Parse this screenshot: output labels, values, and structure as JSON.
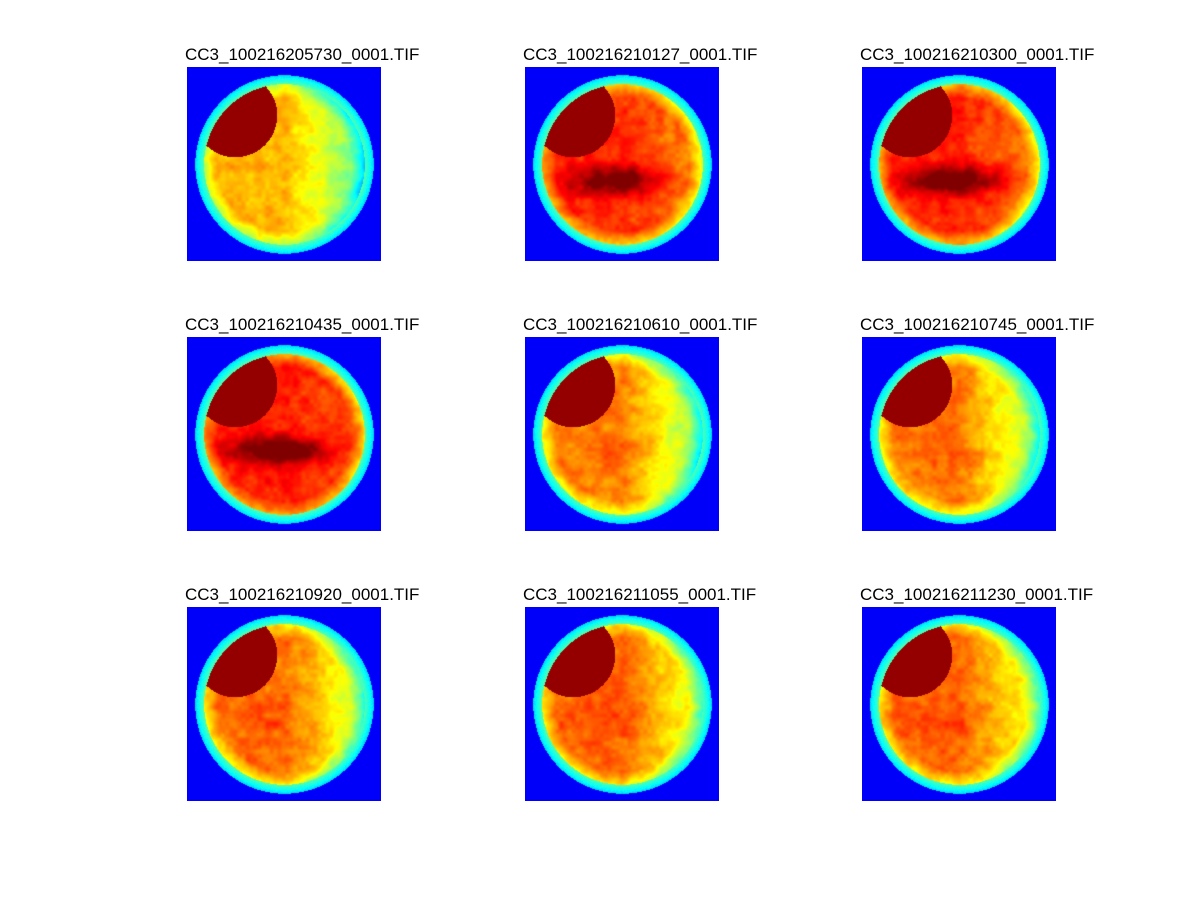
{
  "colors": {
    "background": "#0a33ff",
    "cool": "#33c4ff",
    "mid": "#ffff22",
    "warm": "#ff3300",
    "hot": "#8a0000"
  },
  "panels": [
    {
      "title": "CC3_100216205730_0001.TIF",
      "intensity": 0.45,
      "dark_band": 0.05,
      "right_fade": 0.75
    },
    {
      "title": "CC3_100216210127_0001.TIF",
      "intensity": 0.88,
      "dark_band": 0.95,
      "right_fade": 0.35
    },
    {
      "title": "CC3_100216210300_0001.TIF",
      "intensity": 0.9,
      "dark_band": 1.0,
      "right_fade": 0.3
    },
    {
      "title": "CC3_100216210435_0001.TIF",
      "intensity": 0.92,
      "dark_band": 1.0,
      "right_fade": 0.2
    },
    {
      "title": "CC3_100216210610_0001.TIF",
      "intensity": 0.62,
      "dark_band": 0.1,
      "right_fade": 0.8
    },
    {
      "title": "CC3_100216210745_0001.TIF",
      "intensity": 0.64,
      "dark_band": 0.1,
      "right_fade": 0.75
    },
    {
      "title": "CC3_100216210920_0001.TIF",
      "intensity": 0.68,
      "dark_band": 0.12,
      "right_fade": 0.7
    },
    {
      "title": "CC3_100216211055_0001.TIF",
      "intensity": 0.7,
      "dark_band": 0.15,
      "right_fade": 0.65
    },
    {
      "title": "CC3_100216211230_0001.TIF",
      "intensity": 0.7,
      "dark_band": 0.15,
      "right_fade": 0.62
    }
  ]
}
